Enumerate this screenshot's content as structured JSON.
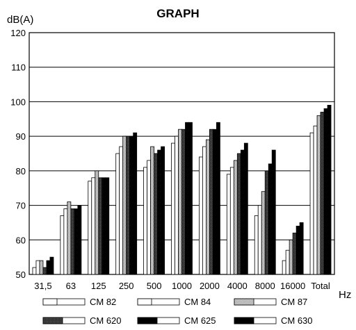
{
  "chart_data": {
    "type": "bar",
    "title": "GRAPH",
    "ylabel": "dB(A)",
    "xlabel": "Hz",
    "ylim": [
      50,
      120
    ],
    "yticks": [
      50,
      60,
      70,
      80,
      90,
      100,
      110,
      120
    ],
    "grid": true,
    "legend_position": "bottom",
    "categories": [
      "31,5",
      "63",
      "125",
      "250",
      "500",
      "1000",
      "2000",
      "4000",
      "8000",
      "16000",
      "Total"
    ],
    "series": [
      {
        "name": "CM 82",
        "fill": "white",
        "values": [
          52,
          67,
          77,
          85,
          81,
          88,
          84,
          79,
          67,
          54,
          91
        ]
      },
      {
        "name": "CM 84",
        "fill": "white",
        "values": [
          54,
          69,
          78,
          87,
          83,
          90,
          87,
          81,
          70,
          57,
          93
        ]
      },
      {
        "name": "CM 87",
        "fill": "dotted",
        "values": [
          54,
          71,
          80,
          90,
          87,
          92,
          89,
          83,
          74,
          60,
          96
        ]
      },
      {
        "name": "CM 620",
        "fill": "dark",
        "values": [
          52,
          69,
          78,
          90,
          85,
          92,
          92,
          85,
          80,
          62,
          97
        ]
      },
      {
        "name": "CM 625",
        "fill": "black",
        "values": [
          54,
          69,
          78,
          90,
          86,
          94,
          92,
          86,
          82,
          64,
          98
        ]
      },
      {
        "name": "CM 630",
        "fill": "black",
        "values": [
          55,
          70,
          78,
          91,
          87,
          94,
          94,
          88,
          86,
          65,
          99
        ]
      }
    ]
  },
  "colors": {
    "ink": "#000000",
    "paper": "#ffffff",
    "dotted": "#b4b4b4",
    "dark": "#3a3a3a",
    "grid": "#000000"
  }
}
